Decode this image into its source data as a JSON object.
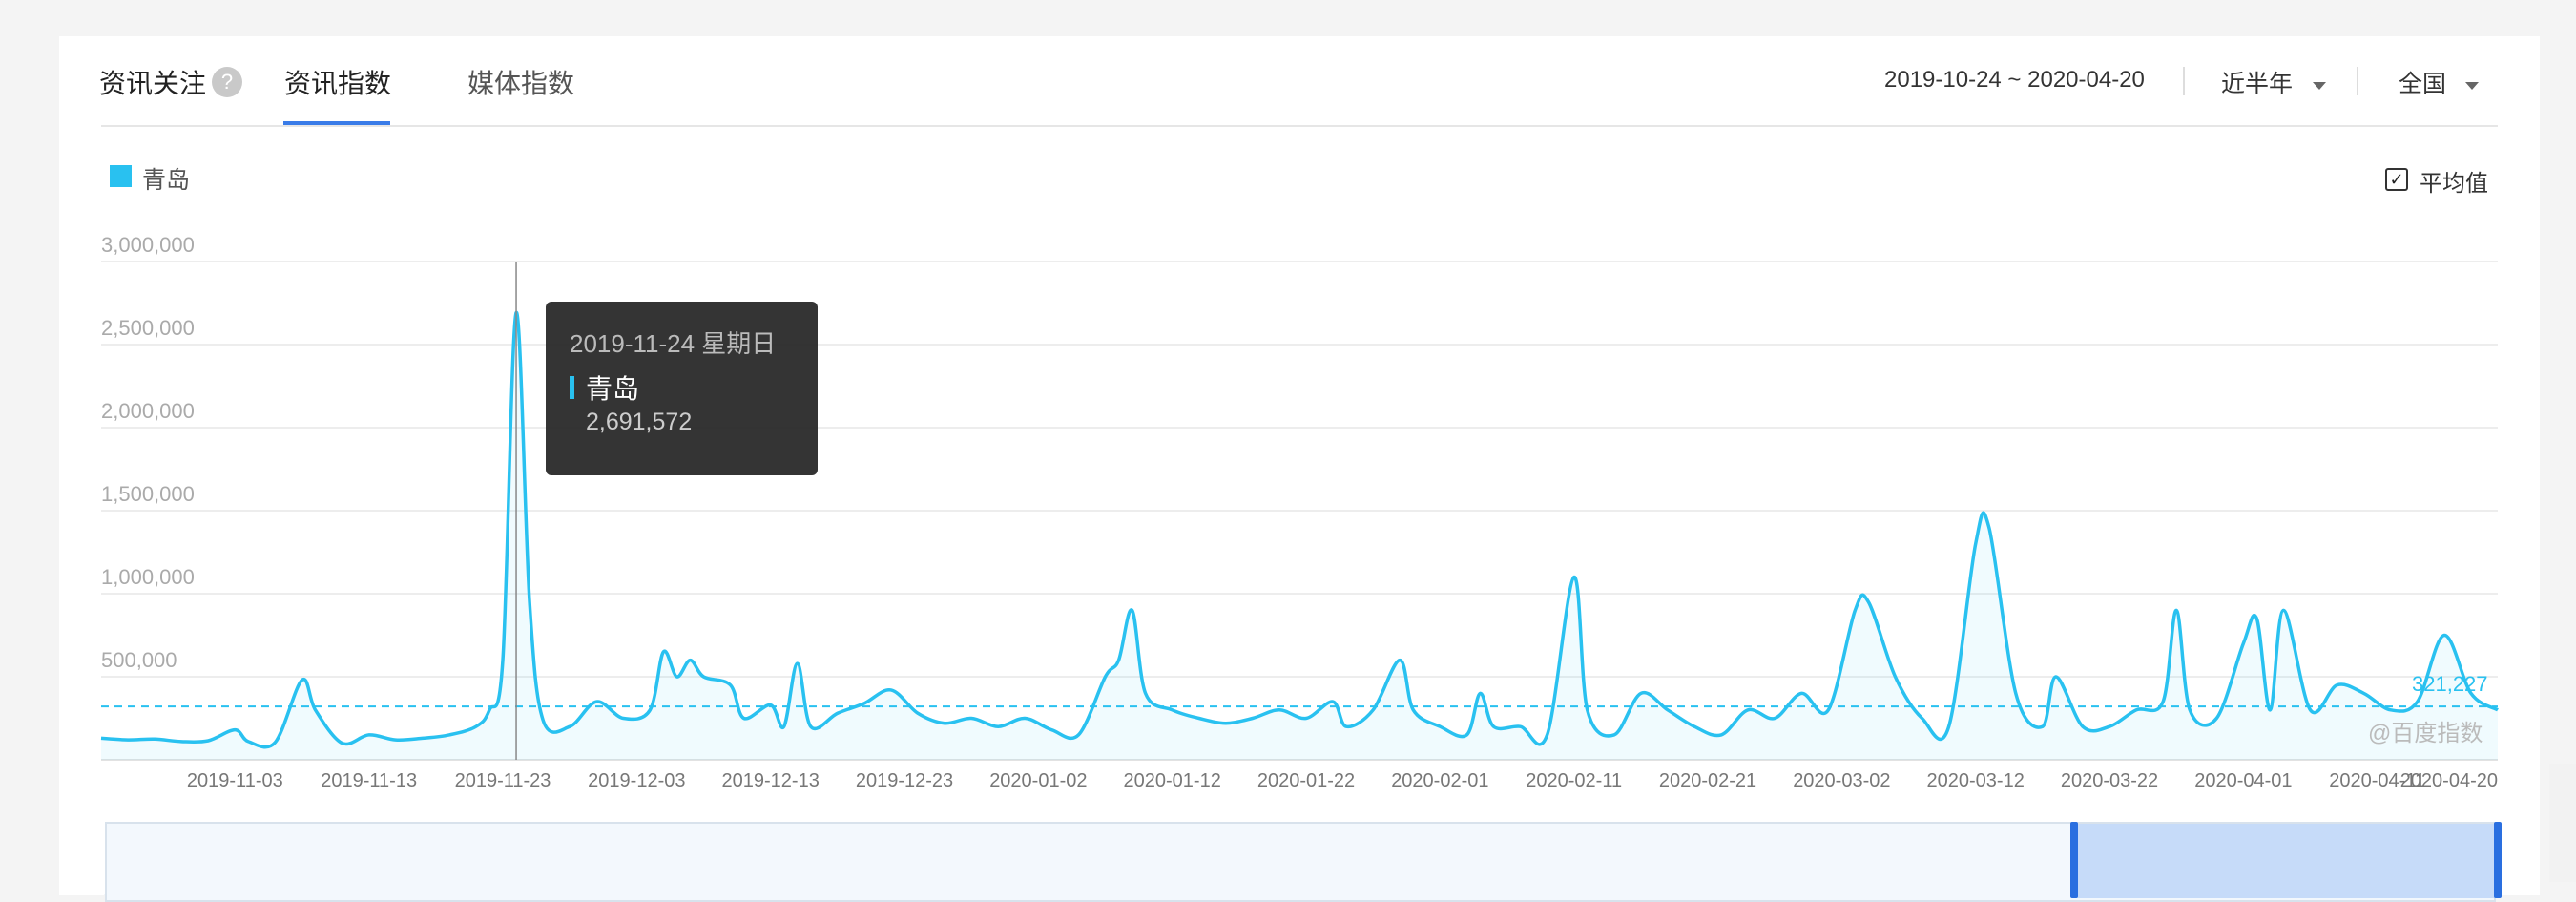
{
  "header": {
    "section_title": "资讯关注",
    "help_icon": "?",
    "tabs": [
      {
        "label": "资讯指数"
      },
      {
        "label": "媒体指数"
      }
    ],
    "date_range": "2019-10-24 ~ 2020-04-20",
    "period_select": "近半年",
    "region_select": "全国"
  },
  "legend": {
    "label": "青岛",
    "color": "#29c1f0"
  },
  "average_toggle": {
    "label": "平均值",
    "checked": true
  },
  "tooltip": {
    "date": "2019-11-24 星期日",
    "series": "青岛",
    "value": "2,691,572"
  },
  "watermark": "@百度指数",
  "average_value": "321,227",
  "chart_data": {
    "type": "area",
    "series_name": "青岛",
    "y_ticks": [
      "3,000,000",
      "2,500,000",
      "2,000,000",
      "1,500,000",
      "1,000,000",
      "500,000"
    ],
    "x_ticks": [
      "2019-11-03",
      "2019-11-13",
      "2019-11-23",
      "2019-12-03",
      "2019-12-13",
      "2019-12-23",
      "2020-01-02",
      "2020-01-12",
      "2020-01-22",
      "2020-02-01",
      "2020-02-11",
      "2020-02-21",
      "2020-03-02",
      "2020-03-12",
      "2020-03-22",
      "2020-04-01",
      "2020-04-11",
      "2020-04-20"
    ],
    "ylim": [
      0,
      3000000
    ],
    "x_start": "2019-10-24",
    "x_end": "2020-04-20",
    "average": 321227,
    "highlight": {
      "date": "2019-11-24",
      "value": 2691572
    },
    "points": [
      [
        "2019-10-24",
        130000
      ],
      [
        "2019-10-26",
        120000
      ],
      [
        "2019-10-28",
        125000
      ],
      [
        "2019-10-30",
        110000
      ],
      [
        "2019-11-01",
        115000
      ],
      [
        "2019-11-03",
        180000
      ],
      [
        "2019-11-04",
        110000
      ],
      [
        "2019-11-06",
        105000
      ],
      [
        "2019-11-08",
        480000
      ],
      [
        "2019-11-09",
        300000
      ],
      [
        "2019-11-11",
        100000
      ],
      [
        "2019-11-13",
        150000
      ],
      [
        "2019-11-15",
        120000
      ],
      [
        "2019-11-17",
        130000
      ],
      [
        "2019-11-19",
        150000
      ],
      [
        "2019-11-21",
        200000
      ],
      [
        "2019-11-22",
        300000
      ],
      [
        "2019-11-23",
        600000
      ],
      [
        "2019-11-24",
        2691572
      ],
      [
        "2019-11-25",
        950000
      ],
      [
        "2019-11-26",
        240000
      ],
      [
        "2019-11-28",
        200000
      ],
      [
        "2019-11-30",
        350000
      ],
      [
        "2019-12-02",
        250000
      ],
      [
        "2019-12-04",
        300000
      ],
      [
        "2019-12-05",
        650000
      ],
      [
        "2019-12-06",
        500000
      ],
      [
        "2019-12-07",
        600000
      ],
      [
        "2019-12-08",
        500000
      ],
      [
        "2019-12-10",
        450000
      ],
      [
        "2019-12-11",
        250000
      ],
      [
        "2019-12-13",
        330000
      ],
      [
        "2019-12-14",
        200000
      ],
      [
        "2019-12-15",
        580000
      ],
      [
        "2019-12-16",
        200000
      ],
      [
        "2019-12-18",
        280000
      ],
      [
        "2019-12-20",
        340000
      ],
      [
        "2019-12-22",
        420000
      ],
      [
        "2019-12-24",
        280000
      ],
      [
        "2019-12-26",
        220000
      ],
      [
        "2019-12-28",
        250000
      ],
      [
        "2019-12-30",
        200000
      ],
      [
        "2020-01-01",
        250000
      ],
      [
        "2020-01-03",
        180000
      ],
      [
        "2020-01-05",
        150000
      ],
      [
        "2020-01-07",
        500000
      ],
      [
        "2020-01-08",
        600000
      ],
      [
        "2020-01-09",
        900000
      ],
      [
        "2020-01-10",
        400000
      ],
      [
        "2020-01-12",
        300000
      ],
      [
        "2020-01-14",
        250000
      ],
      [
        "2020-01-16",
        220000
      ],
      [
        "2020-01-18",
        250000
      ],
      [
        "2020-01-20",
        300000
      ],
      [
        "2020-01-22",
        250000
      ],
      [
        "2020-01-24",
        350000
      ],
      [
        "2020-01-25",
        200000
      ],
      [
        "2020-01-27",
        300000
      ],
      [
        "2020-01-29",
        600000
      ],
      [
        "2020-01-30",
        300000
      ],
      [
        "2020-02-01",
        200000
      ],
      [
        "2020-02-03",
        150000
      ],
      [
        "2020-02-04",
        400000
      ],
      [
        "2020-02-05",
        200000
      ],
      [
        "2020-02-07",
        200000
      ],
      [
        "2020-02-09",
        150000
      ],
      [
        "2020-02-11",
        1100000
      ],
      [
        "2020-02-12",
        300000
      ],
      [
        "2020-02-14",
        150000
      ],
      [
        "2020-02-16",
        400000
      ],
      [
        "2020-02-18",
        300000
      ],
      [
        "2020-02-20",
        200000
      ],
      [
        "2020-02-22",
        150000
      ],
      [
        "2020-02-24",
        300000
      ],
      [
        "2020-02-26",
        250000
      ],
      [
        "2020-02-28",
        400000
      ],
      [
        "2020-03-01",
        300000
      ],
      [
        "2020-03-03",
        900000
      ],
      [
        "2020-03-04",
        950000
      ],
      [
        "2020-03-06",
        500000
      ],
      [
        "2020-03-08",
        250000
      ],
      [
        "2020-03-10",
        200000
      ],
      [
        "2020-03-12",
        1300000
      ],
      [
        "2020-03-13",
        1400000
      ],
      [
        "2020-03-15",
        400000
      ],
      [
        "2020-03-17",
        200000
      ],
      [
        "2020-03-18",
        500000
      ],
      [
        "2020-03-20",
        200000
      ],
      [
        "2020-03-22",
        200000
      ],
      [
        "2020-03-24",
        300000
      ],
      [
        "2020-03-26",
        350000
      ],
      [
        "2020-03-27",
        900000
      ],
      [
        "2020-03-28",
        300000
      ],
      [
        "2020-03-30",
        250000
      ],
      [
        "2020-04-01",
        700000
      ],
      [
        "2020-04-02",
        850000
      ],
      [
        "2020-04-03",
        300000
      ],
      [
        "2020-04-04",
        900000
      ],
      [
        "2020-04-06",
        300000
      ],
      [
        "2020-04-08",
        450000
      ],
      [
        "2020-04-10",
        400000
      ],
      [
        "2020-04-12",
        300000
      ],
      [
        "2020-04-14",
        350000
      ],
      [
        "2020-04-16",
        750000
      ],
      [
        "2020-04-18",
        400000
      ],
      [
        "2020-04-20",
        300000
      ]
    ]
  }
}
